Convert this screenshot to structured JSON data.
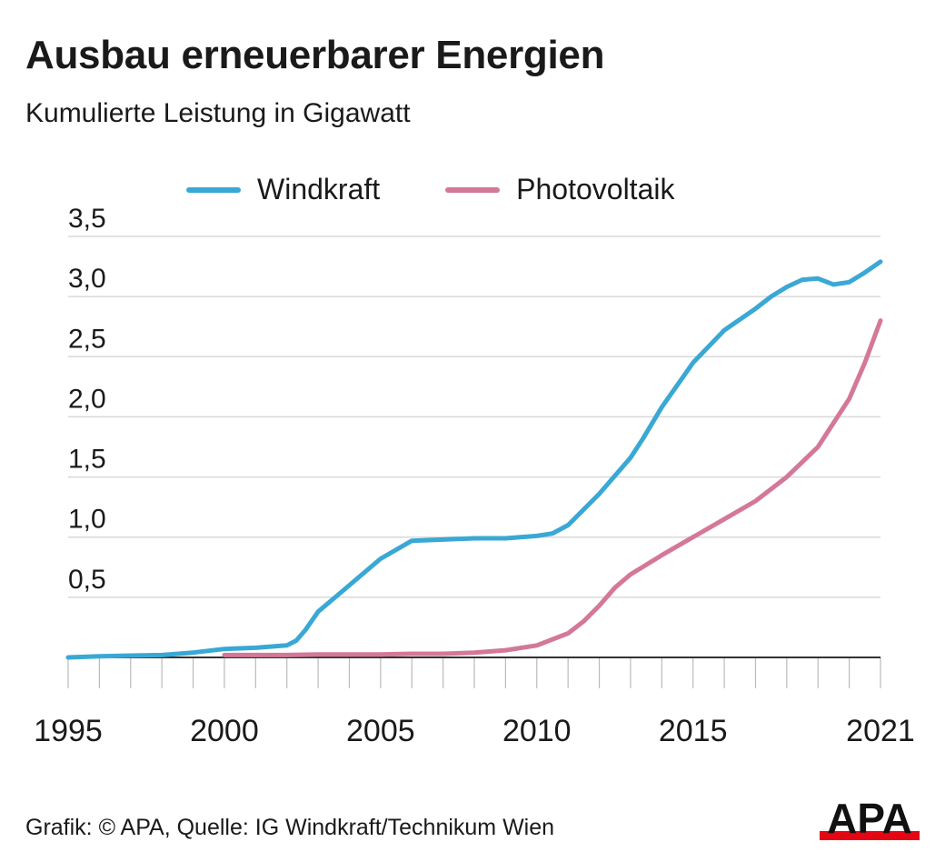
{
  "title": "Ausbau erneuerbarer Energien",
  "subtitle": "Kumulierte Leistung in Gigawatt",
  "source": "Grafik: © APA, Quelle: IG Windkraft/Technikum Wien",
  "logo_text": "APA",
  "colors": {
    "wind": "#3aa8d4",
    "pv": "#d4789a",
    "grid": "#d9d9d9",
    "axis": "#333333",
    "text": "#1a1a1a",
    "logo": "#e30613"
  },
  "chart_data": {
    "type": "line",
    "title": "Ausbau erneuerbarer Energien",
    "subtitle": "Kumulierte Leistung in Gigawatt",
    "xlabel": "",
    "ylabel": "",
    "xlim": [
      1995,
      2021
    ],
    "ylim": [
      0,
      3.5
    ],
    "grid": true,
    "legend_position": "top",
    "x_ticks": [
      "1995",
      "2000",
      "2005",
      "2010",
      "2015",
      "2021"
    ],
    "x_tick_values": [
      1995,
      2000,
      2005,
      2010,
      2015,
      2021
    ],
    "y_ticks": [
      "0,5",
      "1,0",
      "1,5",
      "2,0",
      "2,5",
      "3,0",
      "3,5"
    ],
    "y_tick_values": [
      0.5,
      1.0,
      1.5,
      2.0,
      2.5,
      3.0,
      3.5
    ],
    "series": [
      {
        "name": "Windkraft",
        "color": "#3aa8d4",
        "x": [
          1995,
          1996,
          1997,
          1998,
          1999,
          2000,
          2001,
          2002,
          2002.3,
          2002.6,
          2003,
          2004,
          2005,
          2006,
          2007,
          2008,
          2009,
          2010,
          2010.5,
          2011,
          2012,
          2013,
          2013.4,
          2014,
          2015,
          2016,
          2017,
          2017.5,
          2018,
          2018.5,
          2019,
          2019.5,
          2020,
          2020.5,
          2021
        ],
        "y": [
          0.0,
          0.01,
          0.015,
          0.02,
          0.04,
          0.07,
          0.08,
          0.1,
          0.14,
          0.23,
          0.38,
          0.6,
          0.82,
          0.97,
          0.98,
          0.99,
          0.99,
          1.01,
          1.03,
          1.1,
          1.36,
          1.66,
          1.82,
          2.08,
          2.45,
          2.72,
          2.9,
          3.0,
          3.08,
          3.14,
          3.15,
          3.1,
          3.12,
          3.2,
          3.29
        ]
      },
      {
        "name": "Photovoltaik",
        "color": "#d4789a",
        "x": [
          2000,
          2001,
          2002,
          2003,
          2004,
          2005,
          2006,
          2007,
          2008,
          2009,
          2010,
          2011,
          2011.5,
          2012,
          2012.5,
          2013,
          2014,
          2015,
          2016,
          2017,
          2018,
          2019,
          2019.5,
          2020,
          2020.5,
          2021
        ],
        "y": [
          0.02,
          0.02,
          0.02,
          0.025,
          0.025,
          0.025,
          0.03,
          0.03,
          0.04,
          0.06,
          0.1,
          0.2,
          0.3,
          0.43,
          0.58,
          0.69,
          0.85,
          1.0,
          1.15,
          1.3,
          1.5,
          1.75,
          1.95,
          2.15,
          2.45,
          2.8
        ]
      }
    ]
  }
}
